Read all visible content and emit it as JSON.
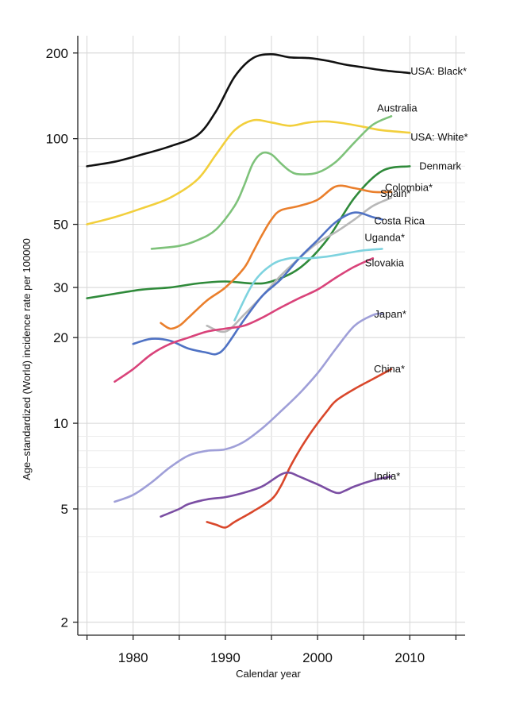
{
  "chart_data": {
    "type": "line",
    "title": "",
    "xlabel": "Calendar year",
    "ylabel": "Age–standardized (World) incidence rate per 100000",
    "y_scale": "log",
    "xlim": [
      1974,
      2016
    ],
    "ylim": [
      1.8,
      230
    ],
    "x_ticks": [
      1980,
      1990,
      2000,
      2010
    ],
    "x_tick_labels": [
      "1980",
      "1990",
      "2000",
      "2010"
    ],
    "y_ticks": [
      2,
      5,
      10,
      20,
      30,
      50,
      100,
      200
    ],
    "y_tick_labels": [
      "2",
      "5",
      "10",
      "20",
      "30",
      "50",
      "100",
      "200"
    ],
    "grid": true,
    "legend": "direct labels at line ends",
    "series": [
      {
        "name": "USA: Black*",
        "color": "#111111",
        "x": [
          1975,
          1978,
          1981,
          1984,
          1987,
          1989,
          1991,
          1993,
          1995,
          1997,
          1999,
          2001,
          2003,
          2005,
          2007,
          2010
        ],
        "y": [
          80,
          83,
          88,
          94,
          103,
          125,
          165,
          192,
          198,
          193,
          192,
          188,
          182,
          178,
          174,
          170
        ]
      },
      {
        "name": "USA: White*",
        "color": "#f2cf3c",
        "x": [
          1975,
          1978,
          1981,
          1984,
          1987,
          1989,
          1991,
          1993,
          1995,
          1997,
          1999,
          2001,
          2003,
          2005,
          2007,
          2010
        ],
        "y": [
          50,
          53,
          57,
          62,
          72,
          88,
          107,
          116,
          114,
          111,
          114,
          115,
          113,
          110,
          107,
          105
        ]
      },
      {
        "name": "Australia",
        "color": "#7ec27a",
        "x": [
          1982,
          1985,
          1987,
          1989,
          1991,
          1992,
          1993,
          1994,
          1995,
          1996,
          1997,
          1998,
          2000,
          2002,
          2004,
          2006,
          2008
        ],
        "y": [
          41,
          42,
          44,
          48,
          58,
          68,
          82,
          89,
          88,
          82,
          77,
          75,
          76,
          83,
          97,
          112,
          120
        ]
      },
      {
        "name": "Denmark",
        "color": "#2f8a3a",
        "x": [
          1975,
          1978,
          1981,
          1984,
          1987,
          1990,
          1993,
          1995,
          1998,
          2001,
          2004,
          2007,
          2010
        ],
        "y": [
          27.5,
          28.5,
          29.5,
          30,
          31,
          31.5,
          31,
          31.5,
          35,
          44,
          62,
          77,
          80
        ]
      },
      {
        "name": "Colombia*",
        "color": "#ea7f2c",
        "x": [
          1983,
          1984,
          1985,
          1986,
          1988,
          1990,
          1992,
          1993,
          1994,
          1995,
          1996,
          1998,
          2000,
          2002,
          2004,
          2006,
          2008
        ],
        "y": [
          22.5,
          21.5,
          22,
          23.5,
          27,
          30,
          35,
          40,
          46,
          52,
          56,
          58,
          61,
          68,
          67,
          65,
          65
        ]
      },
      {
        "name": "Spain*",
        "color": "#b8b8b8",
        "x": [
          1988,
          1990,
          1992,
          1994,
          1996,
          1998,
          2000,
          2002,
          2004,
          2006,
          2008
        ],
        "y": [
          22,
          21,
          24,
          28,
          33,
          38,
          43,
          47,
          52,
          58,
          62
        ]
      },
      {
        "name": "Costa Rica",
        "color": "#4f72c4",
        "x": [
          1980,
          1982,
          1984,
          1986,
          1988,
          1989,
          1990,
          1992,
          1994,
          1996,
          1998,
          2000,
          2002,
          2004,
          2006,
          2007
        ],
        "y": [
          19,
          19.8,
          19.5,
          18.3,
          17.7,
          17.5,
          18.5,
          23,
          28,
          32,
          38,
          44,
          51,
          55,
          53,
          52
        ]
      },
      {
        "name": "Uganda*",
        "color": "#7ed3df",
        "x": [
          1991,
          1993,
          1995,
          1997,
          1999,
          2001,
          2003,
          2005,
          2007
        ],
        "y": [
          23,
          31,
          36,
          38,
          38,
          38.5,
          39.5,
          40.5,
          41
        ]
      },
      {
        "name": "Slovakia",
        "color": "#d9437a",
        "x": [
          1978,
          1980,
          1982,
          1984,
          1986,
          1988,
          1990,
          1992,
          1994,
          1996,
          1998,
          2000,
          2002,
          2004,
          2006
        ],
        "y": [
          14,
          15.5,
          17.5,
          19,
          20,
          21,
          21.5,
          22,
          23.5,
          25.5,
          27.5,
          29.5,
          32.5,
          35.5,
          38
        ]
      },
      {
        "name": "Japan*",
        "color": "#9f9fd8",
        "x": [
          1978,
          1980,
          1982,
          1984,
          1986,
          1988,
          1990,
          1992,
          1994,
          1996,
          1998,
          2000,
          2002,
          2004,
          2006,
          2007
        ],
        "y": [
          5.3,
          5.6,
          6.2,
          7,
          7.7,
          8,
          8.1,
          8.6,
          9.6,
          11,
          12.7,
          15,
          18.3,
          22,
          24,
          24.3
        ]
      },
      {
        "name": "China*",
        "color": "#d9472b",
        "x": [
          1988,
          1989,
          1990,
          1991,
          1993,
          1995,
          1996,
          1997,
          1998,
          1999,
          2000,
          2001,
          2002,
          2004,
          2006,
          2008
        ],
        "y": [
          4.5,
          4.4,
          4.3,
          4.5,
          4.9,
          5.4,
          6,
          7,
          8,
          9,
          10,
          11,
          12,
          13.2,
          14.3,
          15.5
        ]
      },
      {
        "name": "India*",
        "color": "#7b4ea3",
        "x": [
          1983,
          1985,
          1986,
          1988,
          1990,
          1992,
          1994,
          1996,
          1997,
          1998,
          2000,
          2002,
          2003,
          2004,
          2006,
          2008
        ],
        "y": [
          4.7,
          5,
          5.2,
          5.4,
          5.5,
          5.7,
          6,
          6.6,
          6.7,
          6.5,
          6.1,
          5.7,
          5.8,
          6,
          6.3,
          6.5
        ]
      }
    ]
  }
}
